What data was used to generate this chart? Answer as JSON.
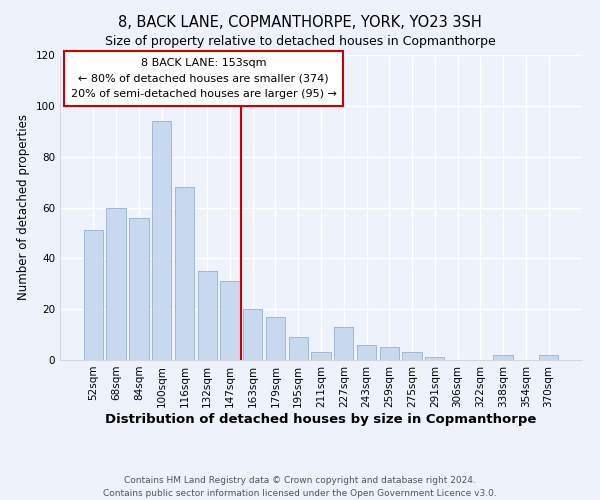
{
  "title": "8, BACK LANE, COPMANTHORPE, YORK, YO23 3SH",
  "subtitle": "Size of property relative to detached houses in Copmanthorpe",
  "xlabel": "Distribution of detached houses by size in Copmanthorpe",
  "ylabel": "Number of detached properties",
  "bar_labels": [
    "52sqm",
    "68sqm",
    "84sqm",
    "100sqm",
    "116sqm",
    "132sqm",
    "147sqm",
    "163sqm",
    "179sqm",
    "195sqm",
    "211sqm",
    "227sqm",
    "243sqm",
    "259sqm",
    "275sqm",
    "291sqm",
    "306sqm",
    "322sqm",
    "338sqm",
    "354sqm",
    "370sqm"
  ],
  "bar_heights": [
    51,
    60,
    56,
    94,
    68,
    35,
    31,
    20,
    17,
    9,
    3,
    13,
    6,
    5,
    3,
    1,
    0,
    0,
    2,
    0,
    2
  ],
  "bar_color": "#c8d8ee",
  "bar_edge_color": "#a0b8d8",
  "marker_line_color": "#cc0000",
  "annotation_title": "8 BACK LANE: 153sqm",
  "annotation_line1": "← 80% of detached houses are smaller (374)",
  "annotation_line2": "20% of semi-detached houses are larger (95) →",
  "annotation_box_color": "white",
  "annotation_box_edge_color": "#cc0000",
  "ylim": [
    0,
    120
  ],
  "yticks": [
    0,
    20,
    40,
    60,
    80,
    100,
    120
  ],
  "footer1": "Contains HM Land Registry data © Crown copyright and database right 2024.",
  "footer2": "Contains public sector information licensed under the Open Government Licence v3.0.",
  "background_color": "#eef2fa",
  "grid_color": "white",
  "title_fontsize": 10.5,
  "subtitle_fontsize": 9,
  "xlabel_fontsize": 9.5,
  "ylabel_fontsize": 8.5,
  "tick_fontsize": 7.5,
  "annotation_fontsize": 8,
  "footer_fontsize": 6.5
}
